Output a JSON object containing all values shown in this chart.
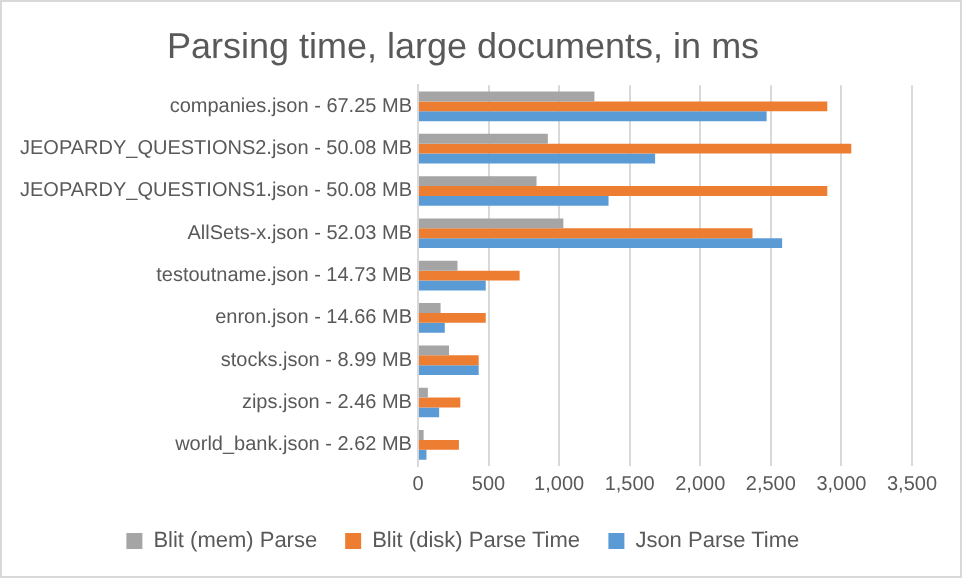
{
  "chart_data": {
    "type": "bar",
    "orientation": "horizontal",
    "title": "Parsing time, large documents, in ms",
    "categories": [
      "companies.json - 67.25 MB",
      "JEOPARDY_QUESTIONS2.json - 50.08 MB",
      "JEOPARDY_QUESTIONS1.json - 50.08 MB",
      "AllSets-x.json - 52.03 MB",
      "testoutname.json - 14.73 MB",
      "enron.json - 14.66 MB",
      "stocks.json - 8.99 MB",
      "zips.json - 2.46 MB",
      "world_bank.json - 2.62 MB"
    ],
    "series": [
      {
        "name": "Blit (mem) Parse",
        "color": "#a5a5a5",
        "values": [
          1250,
          920,
          840,
          1030,
          280,
          160,
          220,
          70,
          40
        ]
      },
      {
        "name": "Blit (disk) Parse Time",
        "color": "#ed7d31",
        "values": [
          2900,
          3070,
          2900,
          2370,
          720,
          480,
          430,
          300,
          290
        ]
      },
      {
        "name": "Json Parse Time",
        "color": "#5b9bd5",
        "values": [
          2470,
          1680,
          1350,
          2580,
          480,
          190,
          430,
          150,
          60
        ]
      }
    ],
    "xlim": [
      0,
      3500
    ],
    "xticks": [
      0,
      500,
      {
        "value": 1000,
        "label": "1,000"
      },
      {
        "value": 1500,
        "label": "1,500"
      },
      {
        "value": 2000,
        "label": "2,000"
      },
      {
        "value": 2500,
        "label": "2,500"
      },
      {
        "value": 3000,
        "label": "3,000"
      },
      {
        "value": 3500,
        "label": "3,500"
      }
    ],
    "grid": "x",
    "legend": "bottom"
  }
}
